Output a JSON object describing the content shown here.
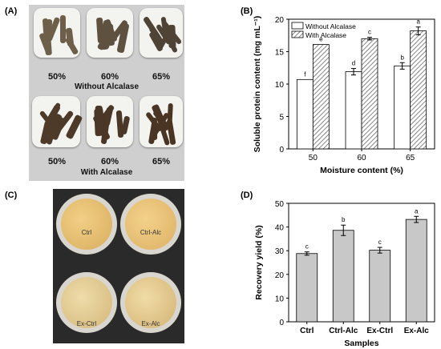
{
  "panels": {
    "a": {
      "label": "(A)",
      "row1": {
        "pcts": [
          "50%",
          "60%",
          "65%"
        ],
        "caption": "Without Alcalase"
      },
      "row2": {
        "pcts": [
          "50%",
          "60%",
          "65%"
        ],
        "caption": "With Alcalase"
      }
    },
    "c": {
      "label": "(C)",
      "bowls": [
        "Ctrl",
        "Ctrl-Alc",
        "Ex-Ctrl",
        "Ex-Alc"
      ]
    }
  },
  "chart_data": [
    {
      "panel_label": "(B)",
      "type": "bar",
      "categories": [
        "50",
        "60",
        "65"
      ],
      "series": [
        {
          "name": "Without Alcalase",
          "values": [
            10.7,
            11.9,
            12.8
          ],
          "errors": [
            0,
            0.5,
            0.5
          ],
          "letters": [
            "f",
            "d",
            "b"
          ],
          "color": "#ffffff",
          "pattern": "none"
        },
        {
          "name": "With Alcalase",
          "values": [
            16.1,
            17.0,
            18.2
          ],
          "errors": [
            0,
            0.2,
            0.6
          ],
          "letters": [
            "e",
            "c",
            "a"
          ],
          "color": "#ffffff",
          "pattern": "hatch"
        }
      ],
      "xlabel": "Moisture content (%)",
      "ylabel": "Soluble protein content (mg mL⁻¹)",
      "ylim": [
        0,
        20
      ],
      "yticks": [
        "0",
        "5",
        "10",
        "15",
        "20"
      ],
      "legend": "top-left",
      "grid": false
    },
    {
      "panel_label": "(D)",
      "type": "bar",
      "categories": [
        "Ctrl",
        "Ctrl-Alc",
        "Ex-Ctrl",
        "Ex-Alc"
      ],
      "values": [
        28.8,
        38.6,
        30.2,
        43.2
      ],
      "errors": [
        0.7,
        2.2,
        1.2,
        1.3
      ],
      "letters": [
        "c",
        "b",
        "c",
        "a"
      ],
      "bar_color": "#c8c8c8",
      "xlabel": "Samples",
      "ylabel": "Recovery yield (%)",
      "ylim": [
        0,
        50
      ],
      "yticks": [
        "0",
        "10",
        "20",
        "30",
        "40",
        "50"
      ],
      "grid": false
    }
  ]
}
